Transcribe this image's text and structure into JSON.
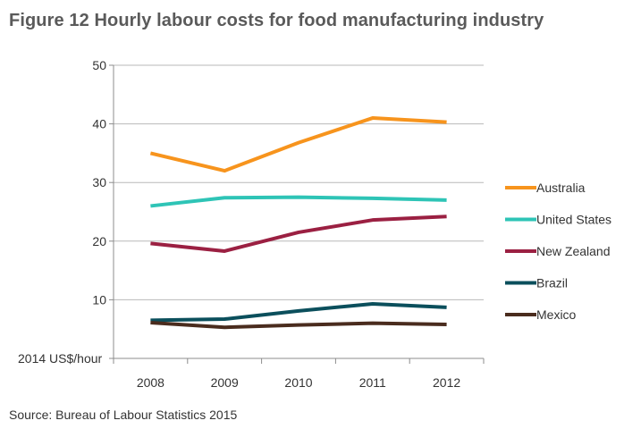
{
  "figure": {
    "title": "Figure 12 Hourly labour costs for food manufacturing industry",
    "source": "Source: Bureau of Labour Statistics 2015"
  },
  "chart_data": {
    "type": "line",
    "title": "Figure 12 Hourly labour costs for food manufacturing industry",
    "xlabel": "",
    "ylabel": "2014 US$/hour",
    "categories": [
      "2008",
      "2009",
      "2010",
      "2011",
      "2012"
    ],
    "ylim": [
      0,
      50
    ],
    "yticks": [
      10,
      20,
      30,
      40,
      50
    ],
    "grid": true,
    "legend_position": "right",
    "series": [
      {
        "name": "Australia",
        "color": "#f7941d",
        "values": [
          35.0,
          32.0,
          36.8,
          41.0,
          40.3
        ]
      },
      {
        "name": "United States",
        "color": "#2ec4b6",
        "values": [
          26.0,
          27.4,
          27.5,
          27.3,
          27.0
        ]
      },
      {
        "name": "New Zealand",
        "color": "#9b2042",
        "values": [
          19.6,
          18.3,
          21.5,
          23.6,
          24.2
        ]
      },
      {
        "name": "Brazil",
        "color": "#0b4f5c",
        "values": [
          6.5,
          6.7,
          8.1,
          9.3,
          8.7
        ]
      },
      {
        "name": "Mexico",
        "color": "#4a2c1e",
        "values": [
          6.1,
          5.3,
          5.7,
          6.0,
          5.8
        ]
      }
    ]
  }
}
